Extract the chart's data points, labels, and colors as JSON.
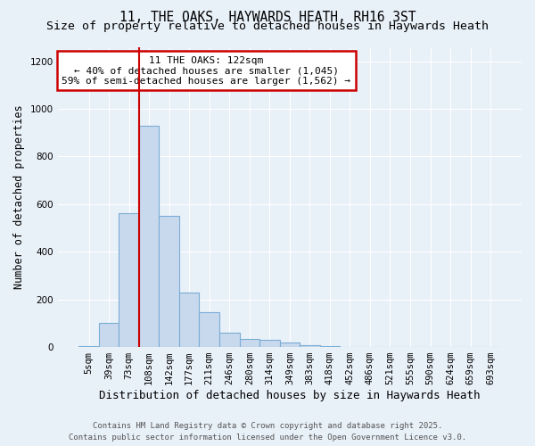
{
  "title": "11, THE OAKS, HAYWARDS HEATH, RH16 3ST",
  "subtitle": "Size of property relative to detached houses in Haywards Heath",
  "xlabel": "Distribution of detached houses by size in Haywards Heath",
  "ylabel": "Number of detached properties",
  "categories": [
    "5sqm",
    "39sqm",
    "73sqm",
    "108sqm",
    "142sqm",
    "177sqm",
    "211sqm",
    "246sqm",
    "280sqm",
    "314sqm",
    "349sqm",
    "383sqm",
    "418sqm",
    "452sqm",
    "486sqm",
    "521sqm",
    "555sqm",
    "590sqm",
    "624sqm",
    "659sqm",
    "693sqm"
  ],
  "values": [
    5,
    100,
    560,
    930,
    550,
    230,
    145,
    60,
    35,
    30,
    20,
    7,
    5,
    2,
    1,
    0,
    0,
    0,
    0,
    0,
    0
  ],
  "bar_color": "#c8d9ed",
  "bar_edge_color": "#7aadd4",
  "bar_width": 1.0,
  "vline_color": "#cc0000",
  "vline_x_index": 3,
  "annotation_text": "11 THE OAKS: 122sqm\n← 40% of detached houses are smaller (1,045)\n59% of semi-detached houses are larger (1,562) →",
  "annotation_box_color": "#ffffff",
  "annotation_box_edge": "#cc0000",
  "ylim": [
    0,
    1260
  ],
  "yticks": [
    0,
    200,
    400,
    600,
    800,
    1000,
    1200
  ],
  "background_color": "#e8f0f8",
  "grid_color": "#ffffff",
  "footnote": "Contains HM Land Registry data © Crown copyright and database right 2025.\nContains public sector information licensed under the Open Government Licence v3.0.",
  "title_fontsize": 10.5,
  "subtitle_fontsize": 9.5,
  "xlabel_fontsize": 9,
  "ylabel_fontsize": 8.5,
  "tick_fontsize": 7.5,
  "annotation_fontsize": 8,
  "footnote_fontsize": 6.5
}
